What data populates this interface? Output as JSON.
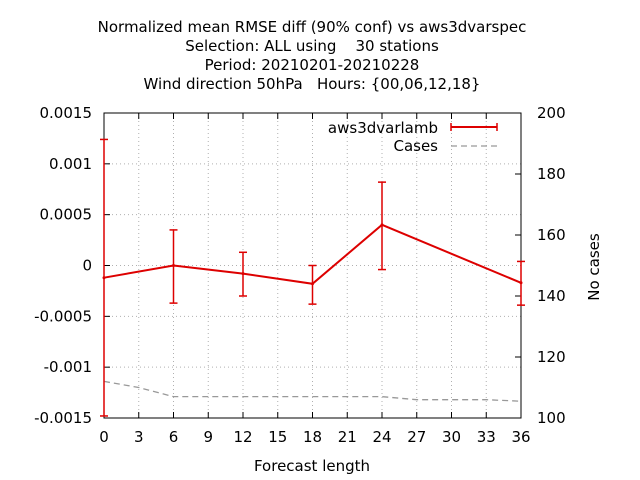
{
  "chart_data": {
    "type": "line",
    "title_lines": [
      "Normalized mean RMSE diff (90% conf) vs aws3dvarspec",
      "Selection: ALL using    30 stations",
      "Period: 20210201-20210228",
      "Wind direction 50hPa   Hours: {00,06,12,18}"
    ],
    "xlabel": "Forecast length",
    "ylabel": "",
    "y2label": "No cases",
    "xlim": [
      0,
      36
    ],
    "ylim": [
      -0.0015,
      0.0015
    ],
    "y2lim": [
      100,
      200
    ],
    "grid": true,
    "legend_position": "top-right",
    "x_ticks": [
      "0",
      "3",
      "6",
      "9",
      "12",
      "15",
      "18",
      "21",
      "24",
      "27",
      "30",
      "33",
      "36"
    ],
    "y_ticks": [
      "0.0015",
      "0.001",
      "0.0005",
      "0",
      "-0.0005",
      "-0.001",
      "-0.0015"
    ],
    "y2_ticks": [
      "200",
      "180",
      "160",
      "140",
      "120",
      "100"
    ],
    "series": [
      {
        "name": "aws3dvarlamb",
        "color": "#dd0000",
        "axis": "y",
        "x": [
          0,
          6,
          12,
          18,
          24,
          36
        ],
        "values": [
          -0.00012,
          0.0,
          -8e-05,
          -0.00018,
          0.0004,
          -0.00017
        ],
        "err_low": [
          -0.00148,
          -0.00037,
          -0.0003,
          -0.00038,
          -4e-05,
          -0.00039
        ],
        "err_high": [
          0.00124,
          0.00035,
          0.00013,
          0.0,
          0.00082,
          4e-05
        ]
      },
      {
        "name": "Cases",
        "color": "#999999",
        "axis": "y2",
        "x": [
          0,
          3,
          6,
          9,
          12,
          15,
          18,
          21,
          24,
          27,
          30,
          33,
          36
        ],
        "values": [
          112,
          110,
          107,
          107,
          107,
          107,
          107,
          107,
          107,
          106,
          106,
          106,
          105.5
        ]
      }
    ]
  }
}
